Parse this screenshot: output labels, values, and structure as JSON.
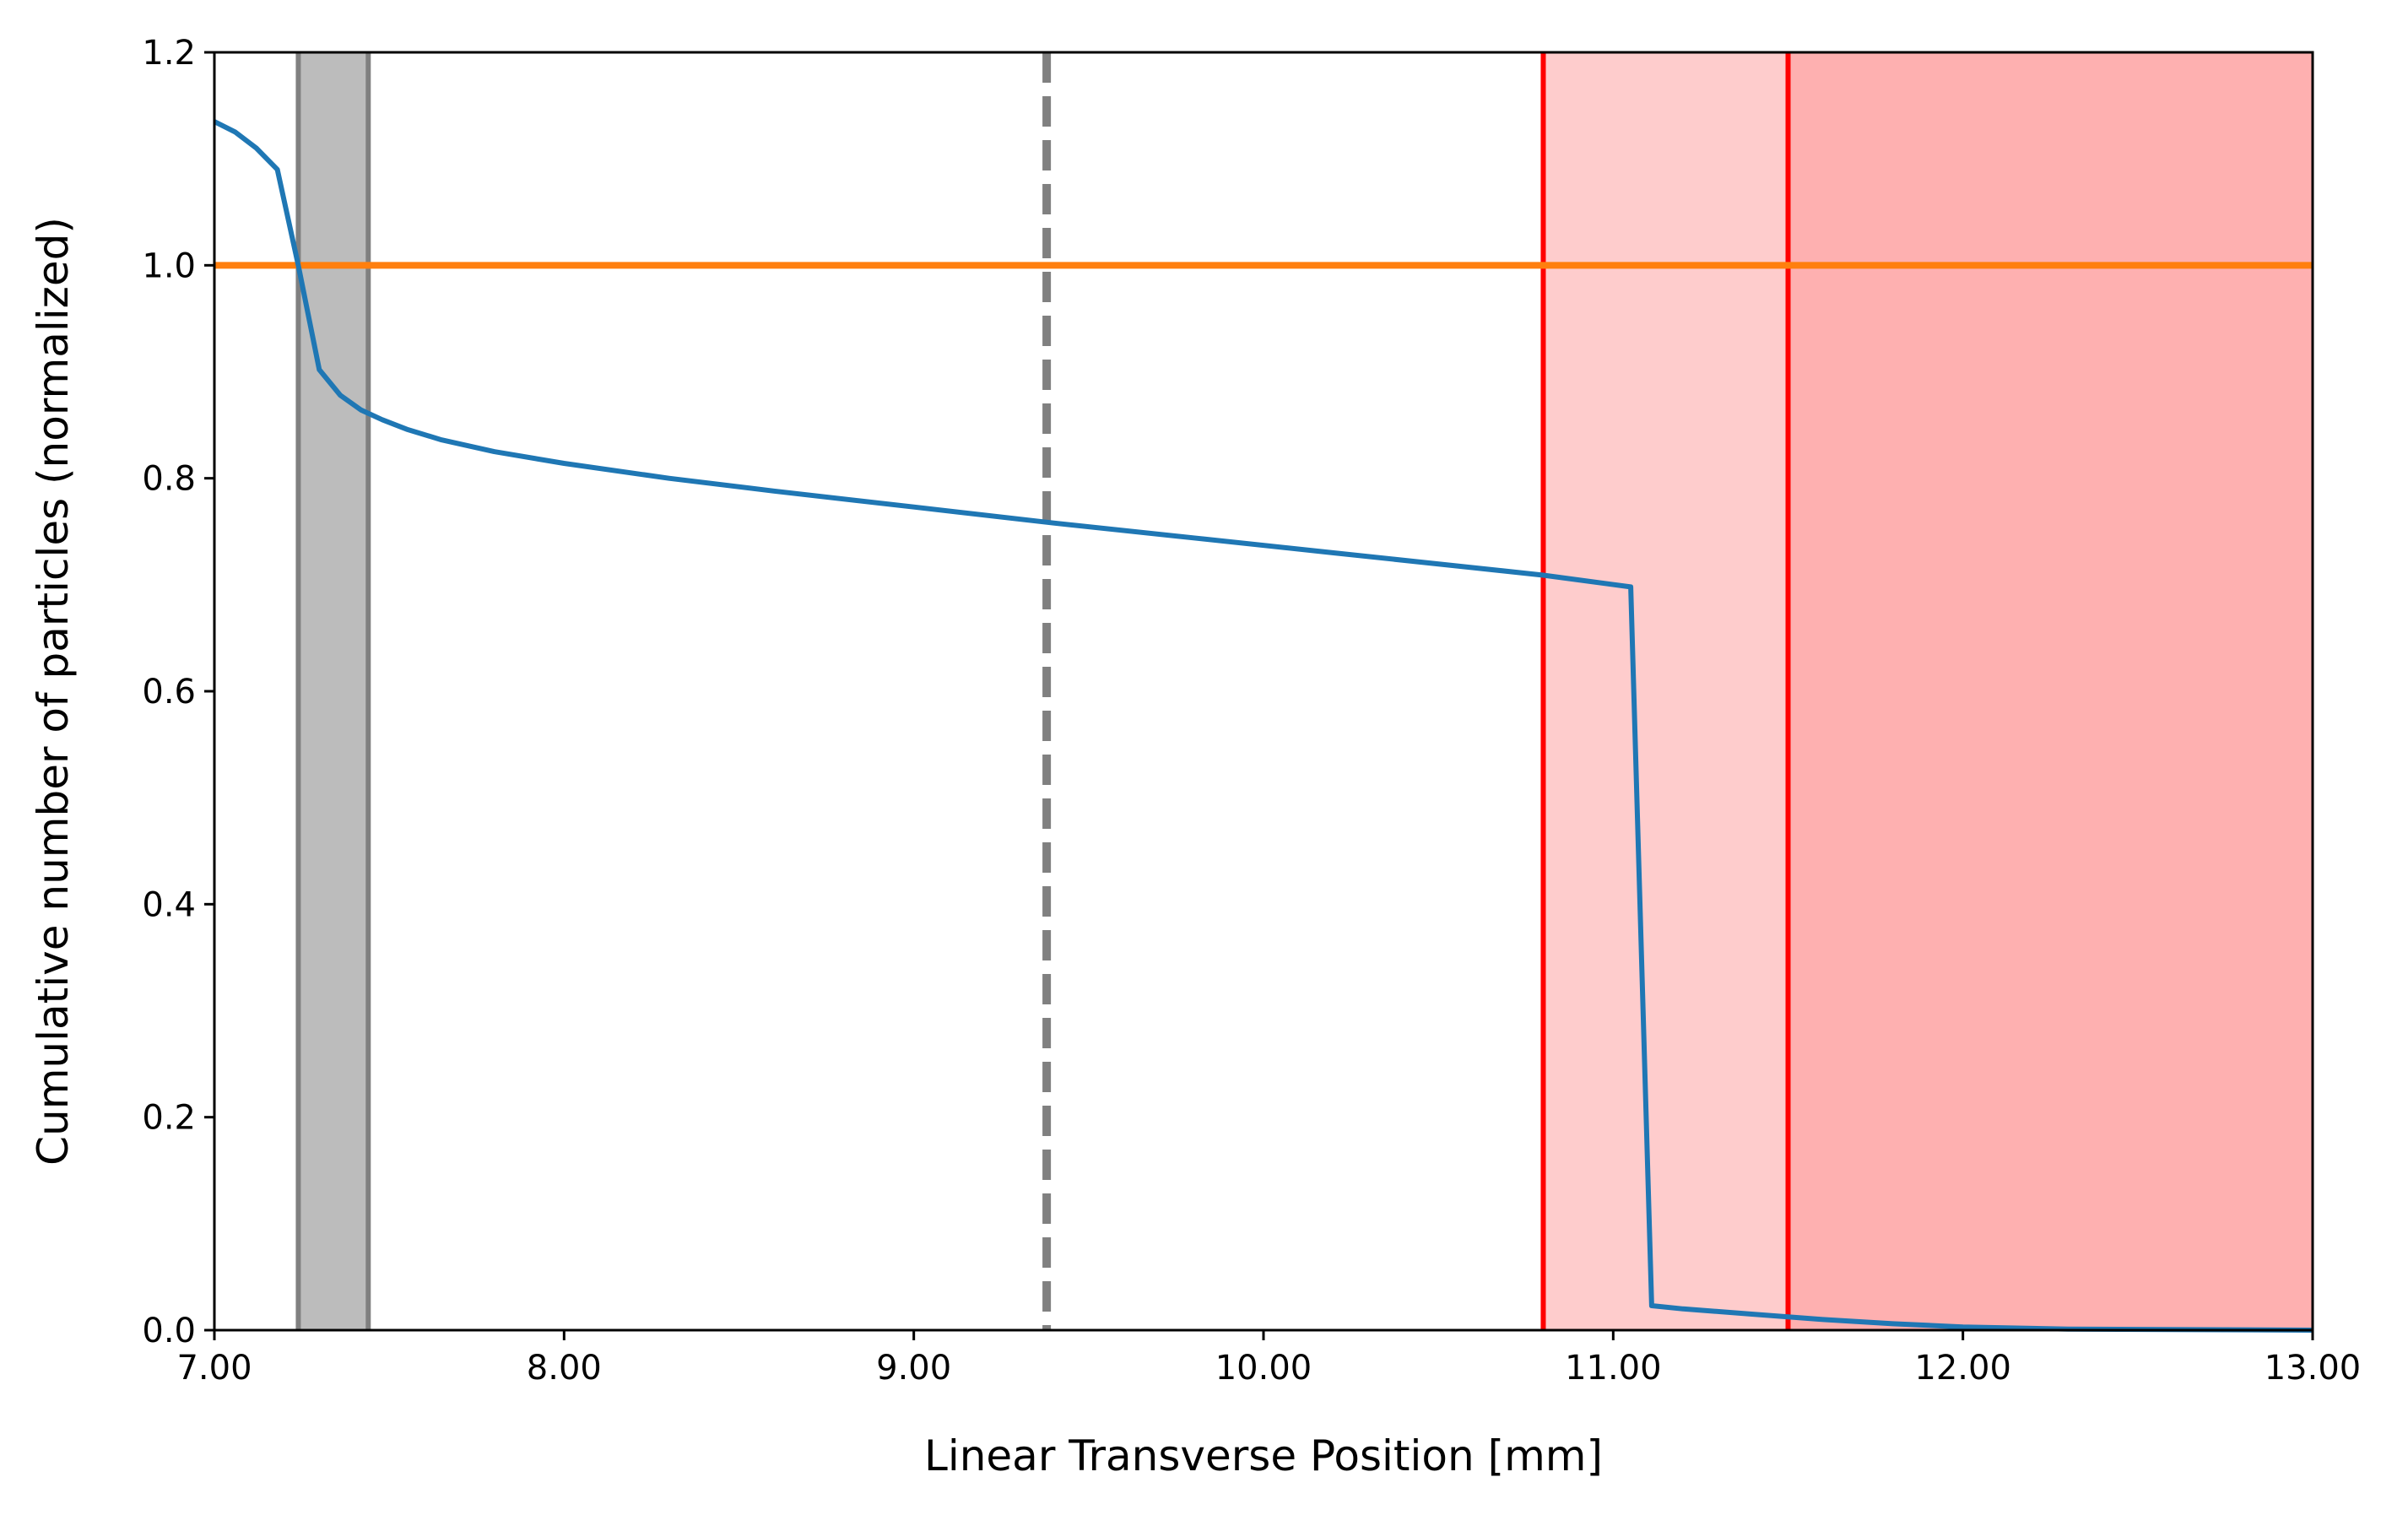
{
  "chart_data": {
    "type": "line",
    "title": "",
    "xlabel": "Linear Transverse Position [mm]",
    "ylabel": "Cumulative number of particles (normalized)",
    "xlim": [
      7.0,
      13.0
    ],
    "ylim": [
      0.0,
      1.2
    ],
    "x_ticks": [
      "7.00",
      "8.00",
      "9.00",
      "10.00",
      "11.00",
      "12.00",
      "13.00"
    ],
    "y_ticks": [
      "0.0",
      "0.2",
      "0.4",
      "0.6",
      "0.8",
      "1.0",
      "1.2"
    ],
    "grid": false,
    "legend": "none",
    "series": [
      {
        "color": "#1f77b4",
        "x": [
          7.0,
          7.06,
          7.12,
          7.18,
          7.24,
          7.3,
          7.36,
          7.42,
          7.48,
          7.55,
          7.65,
          7.8,
          8.0,
          8.3,
          8.6,
          9.0,
          9.4,
          9.8,
          10.2,
          10.6,
          10.8,
          11.05,
          11.11,
          11.2,
          11.4,
          11.6,
          11.8,
          12.0,
          12.3,
          13.0
        ],
        "y": [
          1.135,
          1.125,
          1.11,
          1.09,
          1.0,
          0.902,
          0.878,
          0.864,
          0.855,
          0.846,
          0.836,
          0.825,
          0.814,
          0.8,
          0.788,
          0.773,
          0.758,
          0.744,
          0.73,
          0.716,
          0.709,
          0.698,
          0.023,
          0.02,
          0.015,
          0.01,
          0.006,
          0.003,
          0.001,
          0.0
        ]
      }
    ],
    "reference_lines": [
      {
        "orientation": "horizontal",
        "y": 1.0,
        "color": "#ff7f0e",
        "style": "solid"
      },
      {
        "orientation": "vertical",
        "x": 7.24,
        "color": "#808080",
        "style": "solid"
      },
      {
        "orientation": "vertical",
        "x": 7.44,
        "color": "#808080",
        "style": "solid"
      },
      {
        "orientation": "vertical",
        "x": 9.38,
        "color": "#808080",
        "style": "dashed"
      },
      {
        "orientation": "vertical",
        "x": 10.8,
        "color": "#ff0000",
        "style": "solid"
      },
      {
        "orientation": "vertical",
        "x": 11.5,
        "color": "#ff0000",
        "style": "solid"
      }
    ],
    "shaded_regions": [
      {
        "x0": 7.24,
        "x1": 7.44,
        "color": "#bcbcbc"
      },
      {
        "x0": 10.8,
        "x1": 11.5,
        "color": "#fecccc"
      },
      {
        "x0": 11.5,
        "x1": 13.0,
        "color": "#feb0b0"
      }
    ]
  }
}
